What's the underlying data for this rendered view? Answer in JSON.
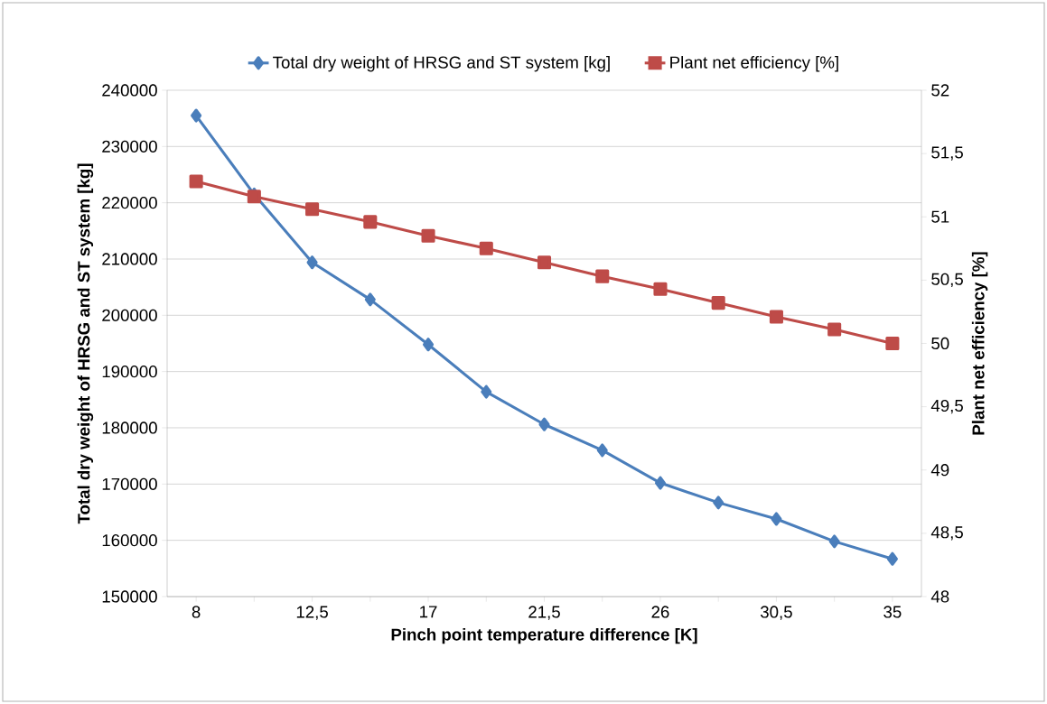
{
  "chart_data": {
    "type": "line",
    "xlabel": "Pinch point temperature difference [K]",
    "ylabel": "Total dry weight of HRSG and ST system [kg]",
    "y2label": "Plant net efficiency [%]",
    "categories": [
      "8",
      null,
      "12,5",
      null,
      "17",
      null,
      "21,5",
      null,
      "26",
      null,
      "30,5",
      null,
      "35"
    ],
    "series": [
      {
        "name": "Total dry weight of HRSG and ST system [kg]",
        "color": "#4a7ebb",
        "marker": "diamond",
        "values": [
          235500,
          221500,
          209400,
          202800,
          194800,
          186400,
          180600,
          176000,
          170200,
          166700,
          163800,
          159800,
          156700
        ]
      },
      {
        "name": "Plant net efficiency [%]",
        "color": "#be4b48",
        "marker": "square",
        "axis": "y2",
        "values": [
          51.28,
          51.16,
          51.06,
          50.96,
          50.85,
          50.75,
          50.64,
          50.53,
          50.43,
          50.32,
          50.21,
          50.11,
          50.0
        ]
      }
    ],
    "ylim": [
      150000,
      240000
    ],
    "yticks": [
      150000,
      160000,
      170000,
      180000,
      190000,
      200000,
      210000,
      220000,
      230000,
      240000
    ],
    "y2lim": [
      48,
      52
    ],
    "y2ticks": [
      48,
      {
        "value": 48.5,
        "label": "48,5"
      },
      49,
      {
        "value": 49.5,
        "label": "49,5"
      },
      50,
      {
        "value": 50.5,
        "label": "50,5"
      },
      51,
      {
        "value": 51.5,
        "label": "51,5"
      },
      52
    ],
    "grid": "y",
    "legend": "top",
    "line_style": "solid"
  }
}
